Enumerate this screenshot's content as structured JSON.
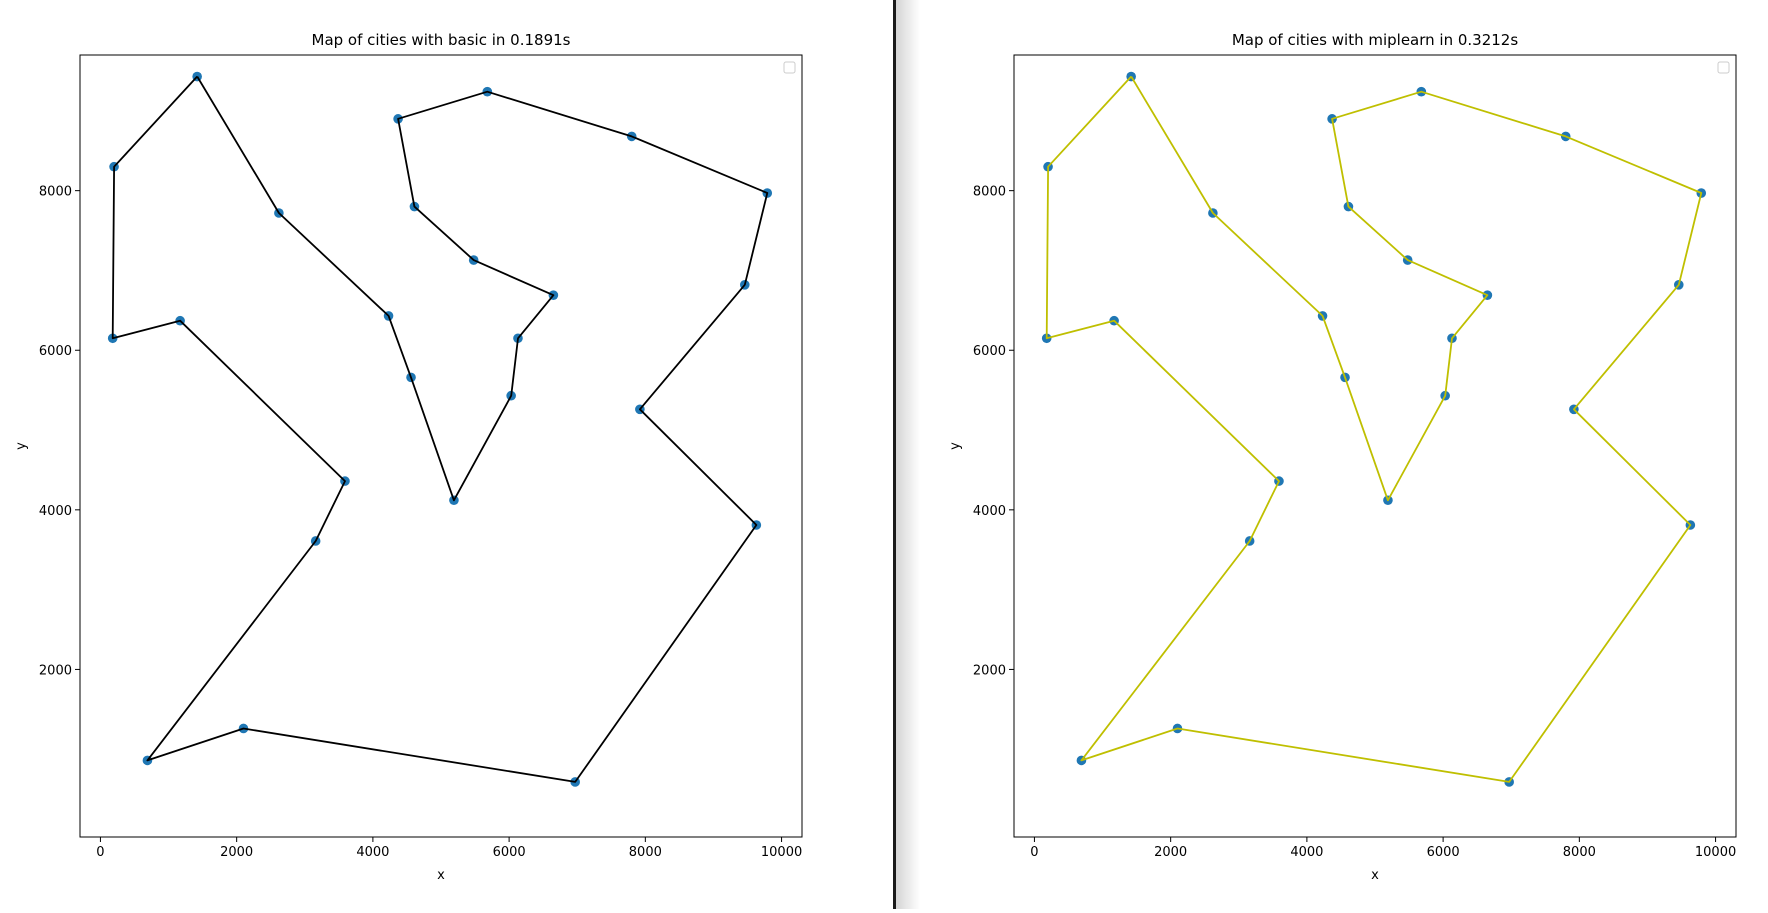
{
  "chart_data": [
    {
      "type": "line",
      "title": "Map of cities with basic in 0.1891s",
      "xlabel": "x",
      "ylabel": "y",
      "xlim": [
        -300,
        10300
      ],
      "ylim": [
        -100,
        9700
      ],
      "xticks": [
        0,
        2000,
        4000,
        6000,
        8000,
        10000
      ],
      "yticks": [
        2000,
        4000,
        6000,
        8000
      ],
      "grid": false,
      "legend": "upper-right (empty)",
      "point_color": "#1f77b4",
      "line_color": "#000000",
      "cities": {
        "x": [
          1420,
          200,
          180,
          1170,
          3590,
          3160,
          690,
          2100,
          6970,
          9630,
          7920,
          9460,
          9790,
          7800,
          5680,
          4370,
          4610,
          5480,
          6650,
          6130,
          6030,
          5190,
          4560,
          4230,
          2620
        ],
        "y": [
          9430,
          8300,
          6150,
          6370,
          4360,
          3610,
          860,
          1260,
          590,
          3810,
          5260,
          6820,
          7970,
          8680,
          9240,
          8900,
          7800,
          7130,
          6690,
          6150,
          5430,
          4120,
          5660,
          6430,
          7720
        ]
      },
      "route": {
        "x": [
          1420,
          200,
          180,
          1170,
          3590,
          3160,
          690,
          2100,
          6970,
          9630,
          7920,
          9460,
          9790,
          7800,
          5680,
          4370,
          4610,
          5480,
          6650,
          6130,
          6030,
          5190,
          4560,
          4230,
          2620,
          1420
        ],
        "y": [
          9430,
          8300,
          6150,
          6370,
          4360,
          3610,
          860,
          1260,
          590,
          3810,
          5260,
          6820,
          7970,
          8680,
          9240,
          8900,
          7800,
          7130,
          6690,
          6150,
          5430,
          4120,
          5660,
          6430,
          7720,
          9430
        ]
      }
    },
    {
      "type": "line",
      "title": "Map of cities with miplearn in 0.3212s",
      "xlabel": "x",
      "ylabel": "y",
      "xlim": [
        -300,
        10300
      ],
      "ylim": [
        -100,
        9700
      ],
      "xticks": [
        0,
        2000,
        4000,
        6000,
        8000,
        10000
      ],
      "yticks": [
        2000,
        4000,
        6000,
        8000
      ],
      "grid": false,
      "legend": "upper-right (empty)",
      "point_color": "#1f77b4",
      "line_color": "#bfbf00",
      "cities": {
        "x": [
          1420,
          200,
          180,
          1170,
          3590,
          3160,
          690,
          2100,
          6970,
          9630,
          7920,
          9460,
          9790,
          7800,
          5680,
          4370,
          4610,
          5480,
          6650,
          6130,
          6030,
          5190,
          4560,
          4230,
          2620
        ],
        "y": [
          9430,
          8300,
          6150,
          6370,
          4360,
          3610,
          860,
          1260,
          590,
          3810,
          5260,
          6820,
          7970,
          8680,
          9240,
          8900,
          7800,
          7130,
          6690,
          6150,
          5430,
          4120,
          5660,
          6430,
          7720
        ]
      },
      "route": {
        "x": [
          1420,
          200,
          180,
          1170,
          3590,
          3160,
          690,
          2100,
          6970,
          9630,
          7920,
          9460,
          9790,
          7800,
          5680,
          4370,
          4610,
          5480,
          6650,
          6130,
          6030,
          5190,
          4560,
          4230,
          2620,
          1420
        ],
        "y": [
          9430,
          8300,
          6150,
          6370,
          4360,
          3610,
          860,
          1260,
          590,
          3810,
          5260,
          6820,
          7970,
          8680,
          9240,
          8900,
          7800,
          7130,
          6690,
          6150,
          5430,
          4120,
          5660,
          6430,
          7720,
          9430
        ]
      }
    }
  ]
}
